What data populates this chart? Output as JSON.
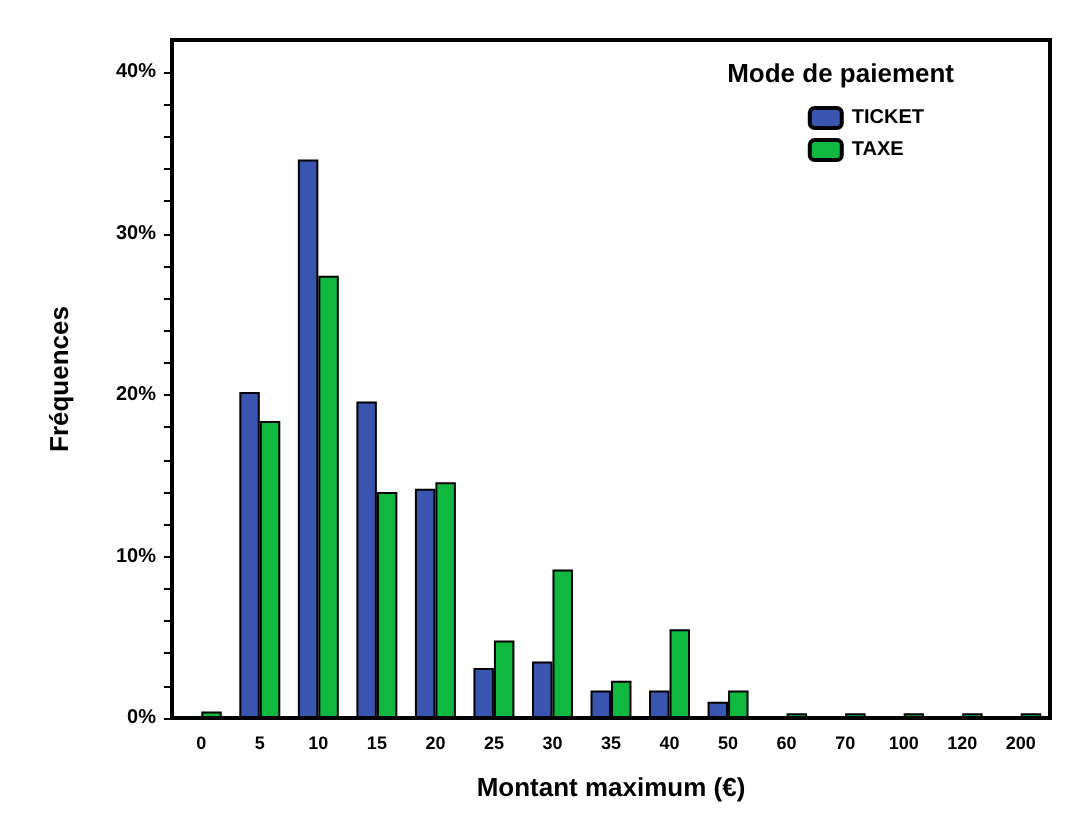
{
  "chart_data": {
    "type": "bar",
    "xlabel": "Montant maximum (€)",
    "ylabel": "Fréquences",
    "legend_title": "Mode de paiement",
    "legend": "top right",
    "grid": false,
    "categories": [
      "0",
      "5",
      "10",
      "15",
      "20",
      "25",
      "30",
      "35",
      "40",
      "50",
      "60",
      "70",
      "100",
      "120",
      "200"
    ],
    "series": [
      {
        "name": "TICKET",
        "color": "#3a55b0",
        "values": [
          0,
          20.2,
          34.6,
          19.6,
          14.2,
          3.1,
          3.5,
          1.7,
          1.7,
          1.0,
          0,
          0,
          0,
          0,
          0
        ]
      },
      {
        "name": "TAXE",
        "color": "#10b840",
        "values": [
          0.4,
          18.4,
          27.4,
          14.0,
          14.6,
          4.8,
          9.2,
          2.3,
          5.5,
          1.7,
          0.3,
          0.3,
          0.3,
          0.3,
          0.3
        ]
      }
    ],
    "ylim": [
      0,
      42
    ],
    "yticks": [
      {
        "value": 0,
        "label": "0%"
      },
      {
        "value": 2,
        "label": null
      },
      {
        "value": 4,
        "label": null
      },
      {
        "value": 6,
        "label": null
      },
      {
        "value": 8,
        "label": null
      },
      {
        "value": 10,
        "label": "10%"
      },
      {
        "value": 12,
        "label": null
      },
      {
        "value": 14,
        "label": null
      },
      {
        "value": 16,
        "label": null
      },
      {
        "value": 18,
        "label": null
      },
      {
        "value": 20,
        "label": "20%"
      },
      {
        "value": 22,
        "label": null
      },
      {
        "value": 24,
        "label": null
      },
      {
        "value": 26,
        "label": null
      },
      {
        "value": 28,
        "label": null
      },
      {
        "value": 30,
        "label": "30%"
      },
      {
        "value": 32,
        "label": null
      },
      {
        "value": 34,
        "label": null
      },
      {
        "value": 36,
        "label": null
      },
      {
        "value": 38,
        "label": null
      },
      {
        "value": 40,
        "label": "40%"
      }
    ]
  }
}
